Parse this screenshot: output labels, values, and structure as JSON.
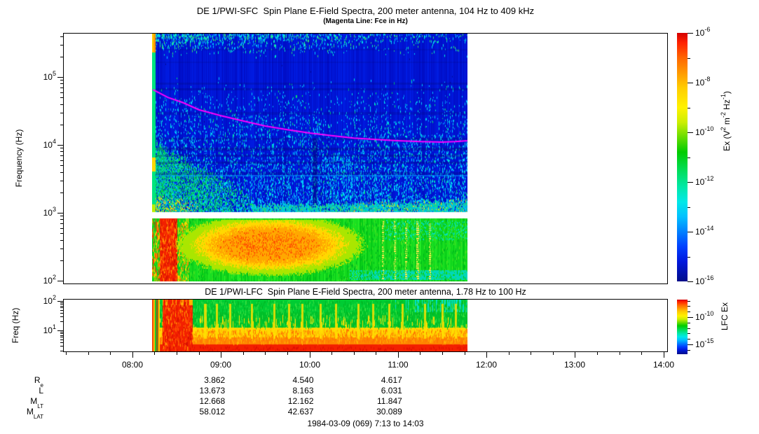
{
  "footer": {
    "rows": [
      {
        "label": "R",
        "sub": "e",
        "values": [
          "3.862",
          "4.540",
          "4.617"
        ]
      },
      {
        "label": "L",
        "sub": "",
        "values": [
          "13.673",
          "8.163",
          "6.031"
        ]
      },
      {
        "label": "M",
        "sub": "LT",
        "values": [
          "12.668",
          "12.162",
          "11.847"
        ]
      },
      {
        "label": "M",
        "sub": "LAT",
        "values": [
          "58.012",
          "42.637",
          "30.089"
        ]
      }
    ],
    "value_columns_hours": [
      9,
      10,
      11
    ],
    "date_line": "1984-03-09 (069) 7:13 to 14:03"
  },
  "colormap": {
    "stops": [
      {
        "p": 0.0,
        "c": "#d40000"
      },
      {
        "p": 0.04,
        "c": "#ff2200"
      },
      {
        "p": 0.1,
        "c": "#ff6600"
      },
      {
        "p": 0.16,
        "c": "#ff9900"
      },
      {
        "p": 0.22,
        "c": "#ffcc00"
      },
      {
        "p": 0.3,
        "c": "#fff200"
      },
      {
        "p": 0.36,
        "c": "#ccee00"
      },
      {
        "p": 0.42,
        "c": "#66dd00"
      },
      {
        "p": 0.48,
        "c": "#00cc00"
      },
      {
        "p": 0.55,
        "c": "#00dd55"
      },
      {
        "p": 0.62,
        "c": "#00e8a8"
      },
      {
        "p": 0.68,
        "c": "#00e8e8"
      },
      {
        "p": 0.74,
        "c": "#00c0ff"
      },
      {
        "p": 0.8,
        "c": "#0080ff"
      },
      {
        "p": 0.86,
        "c": "#0040ff"
      },
      {
        "p": 0.92,
        "c": "#0018dd"
      },
      {
        "p": 1.0,
        "c": "#000d88"
      }
    ]
  },
  "chart_data": [
    {
      "type": "heatmap",
      "panel": "SFC",
      "title": "DE 1/PWI-SFC  Spin Plane E-Field Spectra, 200 meter antenna, 104 Hz to 409 kHz",
      "subtitle": "(Magenta Line: Fce in Hz)",
      "ylabel": "Frequency (Hz)",
      "yaxis": {
        "scale": "log",
        "tick_base": "10",
        "ticks_exp": [
          5,
          4,
          3,
          2
        ],
        "range_hz": [
          91,
          447000
        ]
      },
      "xaxis": {
        "range_hours": [
          7.2167,
          14.05
        ],
        "minor_step_hours": 0.25,
        "ticks": [
          {
            "hour": 8,
            "label": "08:00"
          },
          {
            "hour": 9,
            "label": "09:00"
          },
          {
            "hour": 10,
            "label": "10:00"
          },
          {
            "hour": 11,
            "label": "11:00"
          },
          {
            "hour": 12,
            "label": "12:00"
          },
          {
            "hour": 13,
            "label": "13:00"
          },
          {
            "hour": 14,
            "label": "14:00"
          }
        ]
      },
      "data_span_hours": [
        8.233,
        11.783
      ],
      "bands_hz": [
        [
          1000,
          410000
        ],
        [
          104,
          886
        ]
      ],
      "colorbar": {
        "tick_base": "10",
        "ticks_exp": [
          -6,
          -8,
          -10,
          -12,
          -14,
          -16
        ],
        "minor_ticks_exp": [
          -7,
          -9,
          -11,
          -13,
          -15
        ],
        "label_segments": [
          {
            "t": "Ex (V"
          },
          {
            "sup": "2"
          },
          {
            "t": " m"
          },
          {
            "sup": "-2"
          },
          {
            "t": " Hz"
          },
          {
            "sup": "-1"
          },
          {
            "t": ")"
          }
        ]
      },
      "fce_line": {
        "color": "#ff00ff",
        "points_hours_hz": [
          [
            8.233,
            65000
          ],
          [
            8.4,
            50000
          ],
          [
            8.57,
            42000
          ],
          [
            8.75,
            33000
          ],
          [
            9.0,
            27000
          ],
          [
            9.25,
            22500
          ],
          [
            9.5,
            19000
          ],
          [
            9.75,
            16800
          ],
          [
            10.0,
            15000
          ],
          [
            10.25,
            13700
          ],
          [
            10.5,
            12600
          ],
          [
            10.75,
            12000
          ],
          [
            11.0,
            11500
          ],
          [
            11.25,
            11200
          ],
          [
            11.5,
            11000
          ],
          [
            11.65,
            11200
          ],
          [
            11.783,
            11500
          ]
        ]
      },
      "features": [
        "deep blue background above 1 kHz with cyan speckle noise",
        "green-cyan auroral hiss plume 08:15-09:20 between 1 and 10 kHz",
        "cyan band with yellow patches just above 1 kHz after 09:20",
        "green band 104 Hz-1 kHz with yellow-orange core 08:45-10:30",
        "intense red burst near 08:20-08:30 at lowest frequencies"
      ]
    },
    {
      "type": "heatmap",
      "panel": "LFC",
      "title": "DE 1/PWI-LFC  Spin Plane E-Field Spectra, 200 meter antenna, 1.78 Hz to 100 Hz",
      "ylabel": "Freq (Hz)",
      "yaxis": {
        "scale": "log",
        "tick_base": "10",
        "ticks_exp": [
          2,
          1
        ],
        "range_hz": [
          1.9,
          105
        ]
      },
      "colorbar": {
        "tick_base": "10",
        "ticks_exp": [
          -10,
          -15
        ],
        "label": "LFC Ex"
      },
      "features": [
        "red-orange intensity at lowest frequencies throughout",
        "saturated red vertical burst 08:20-08:40 across all frequencies",
        "yellow vertical striations through mid frequencies",
        "green to cyan levels at top frequencies, bluer after 11:00"
      ]
    }
  ]
}
